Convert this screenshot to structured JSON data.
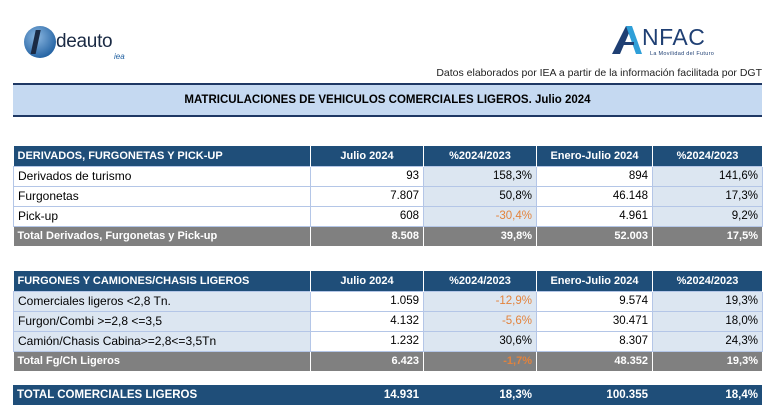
{
  "logos": {
    "ideauto": {
      "word": "deauto",
      "sub": "iea"
    },
    "anfac": {
      "word": "NFAC",
      "tagline": "La Movilidad del Futuro"
    }
  },
  "source_note": "Datos elaborados por IEA a partir de la información facilitada por DGT",
  "title": "MATRICULACIONES DE VEHICULOS COMERCIALES LIGEROS. Julio 2024",
  "table1": {
    "headers": [
      "DERIVADOS, FURGONETAS Y PICK-UP",
      "Julio 2024",
      "%2024/2023",
      "Enero-Julio 2024",
      "%2024/2023"
    ],
    "rows": [
      [
        "Derivados de turismo",
        "93",
        "158,3%",
        "894",
        "141,6%"
      ],
      [
        "Furgonetas",
        "7.807",
        "50,8%",
        "46.148",
        "17,3%"
      ],
      [
        "Pick-up",
        "608",
        "-30,4%",
        "4.961",
        "9,2%"
      ]
    ],
    "total": [
      "Total Derivados, Furgonetas y Pick-up",
      "8.508",
      "39,8%",
      "52.003",
      "17,5%"
    ]
  },
  "table2": {
    "headers": [
      "FURGONES Y CAMIONES/CHASIS LIGEROS",
      "Julio 2024",
      "%2024/2023",
      "Enero-Julio 2024",
      "%2024/2023"
    ],
    "rows": [
      [
        "Comerciales ligeros <2,8 Tn.",
        "1.059",
        "-12,9%",
        "9.574",
        "19,3%"
      ],
      [
        "Furgon/Combi >=2,8 <=3,5",
        "4.132",
        "-5,6%",
        "30.471",
        "18,0%"
      ],
      [
        "Camión/Chasis Cabina>=2,8<=3,5Tn",
        "1.232",
        "30,6%",
        "8.307",
        "24,3%"
      ]
    ],
    "total": [
      "Total Fg/Ch Ligeros",
      "6.423",
      "-1,7%",
      "48.352",
      "19,3%"
    ]
  },
  "grand_total": [
    "TOTAL COMERCIALES LIGEROS",
    "14.931",
    "18,3%",
    "100.355",
    "18,4%"
  ],
  "colors": {
    "header_bg": "#1f4e79",
    "title_bg": "#c5d9f1",
    "row_bg": "#dce6f1",
    "total_bg": "#808080",
    "negative": "#e3833c"
  }
}
